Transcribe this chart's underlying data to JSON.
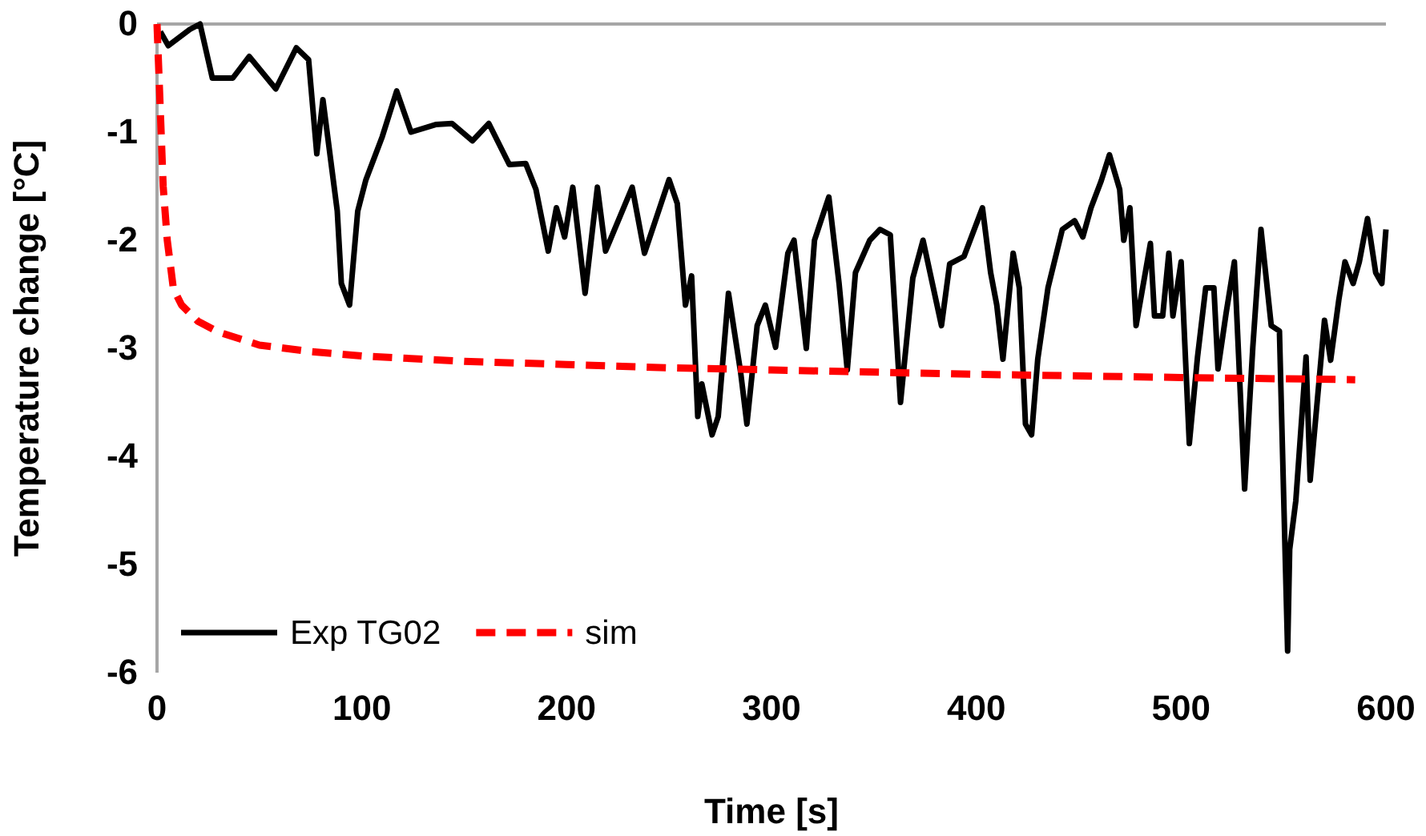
{
  "chart_data": {
    "type": "line",
    "xlabel": "Time [s]",
    "ylabel": "Temperature change [°C]",
    "xlim": [
      0,
      600
    ],
    "xticks": [
      0,
      100,
      200,
      300,
      400,
      500,
      600
    ],
    "ylim": [
      -6,
      0
    ],
    "yticks": [
      -6,
      -5,
      -4,
      -3,
      -2,
      -1,
      0
    ],
    "grid": false,
    "legend": "bottom left",
    "marker": "none",
    "series": [
      {
        "name": "Exp TG02",
        "color": "#000000",
        "line_style": "solid",
        "x": [
          1.6,
          5.5,
          16,
          21,
          27,
          37,
          45,
          58,
          68,
          74,
          78,
          81,
          88,
          90,
          94,
          98,
          102,
          110,
          117,
          124,
          136,
          144,
          154,
          162,
          172,
          180,
          185,
          191,
          195,
          199,
          203,
          209,
          215,
          219,
          232,
          238,
          250,
          254,
          258,
          261,
          264,
          266,
          271,
          274,
          279,
          285,
          288,
          293,
          297,
          302,
          308,
          311,
          317,
          321,
          328,
          333,
          337,
          341,
          348,
          353,
          358,
          363,
          369,
          374,
          383,
          387,
          394,
          403,
          407,
          410,
          413,
          418,
          421,
          424,
          427,
          430,
          435,
          442,
          448,
          452,
          456,
          461,
          465,
          470,
          472,
          475,
          478,
          485,
          487,
          491,
          494,
          496,
          500,
          504,
          508,
          512,
          516,
          518,
          522,
          526,
          531,
          535,
          539,
          544,
          548,
          552,
          553,
          556,
          561,
          563,
          570,
          573,
          577,
          580,
          584,
          587,
          591,
          595,
          598,
          600
        ],
        "values": [
          -0.07,
          -0.2,
          -0.05,
          0,
          -0.5,
          -0.5,
          -0.3,
          -0.6,
          -0.22,
          -0.33,
          -1.2,
          -0.7,
          -1.73,
          -2.4,
          -2.6,
          -1.73,
          -1.44,
          -1.04,
          -0.62,
          -1.0,
          -0.93,
          -0.92,
          -1.08,
          -0.92,
          -1.3,
          -1.29,
          -1.53,
          -2.1,
          -1.7,
          -1.97,
          -1.51,
          -2.49,
          -1.51,
          -2.1,
          -1.51,
          -2.12,
          -1.44,
          -1.66,
          -2.6,
          -2.33,
          -3.63,
          -3.33,
          -3.8,
          -3.63,
          -2.49,
          -3.23,
          -3.7,
          -2.79,
          -2.6,
          -2.99,
          -2.12,
          -2.0,
          -3.0,
          -2.0,
          -1.6,
          -2.4,
          -3.2,
          -2.3,
          -2.0,
          -1.9,
          -1.95,
          -3.5,
          -2.35,
          -2.0,
          -2.79,
          -2.22,
          -2.15,
          -1.7,
          -2.3,
          -2.6,
          -3.1,
          -2.12,
          -2.44,
          -3.7,
          -3.8,
          -3.1,
          -2.44,
          -1.9,
          -1.82,
          -1.97,
          -1.7,
          -1.45,
          -1.21,
          -1.53,
          -2.0,
          -1.7,
          -2.79,
          -2.03,
          -2.7,
          -2.7,
          -2.12,
          -2.7,
          -2.2,
          -3.88,
          -3.08,
          -2.44,
          -2.44,
          -3.19,
          -2.67,
          -2.2,
          -4.3,
          -2.99,
          -1.9,
          -2.79,
          -2.84,
          -5.8,
          -4.86,
          -4.41,
          -3.08,
          -4.22,
          -2.74,
          -3.11,
          -2.55,
          -2.2,
          -2.4,
          -2.2,
          -1.8,
          -2.3,
          -2.4,
          -1.9
        ]
      },
      {
        "name": "sim",
        "color": "#ff0000",
        "line_style": "dashed",
        "x": [
          0,
          1,
          2,
          3,
          5,
          8,
          12,
          20,
          30,
          50,
          75,
          100,
          150,
          200,
          250,
          300,
          400,
          500,
          585
        ],
        "values": [
          0,
          -0.5,
          -1.0,
          -1.5,
          -2.0,
          -2.45,
          -2.6,
          -2.75,
          -2.85,
          -2.97,
          -3.03,
          -3.07,
          -3.12,
          -3.15,
          -3.18,
          -3.2,
          -3.24,
          -3.27,
          -3.29
        ]
      }
    ]
  }
}
